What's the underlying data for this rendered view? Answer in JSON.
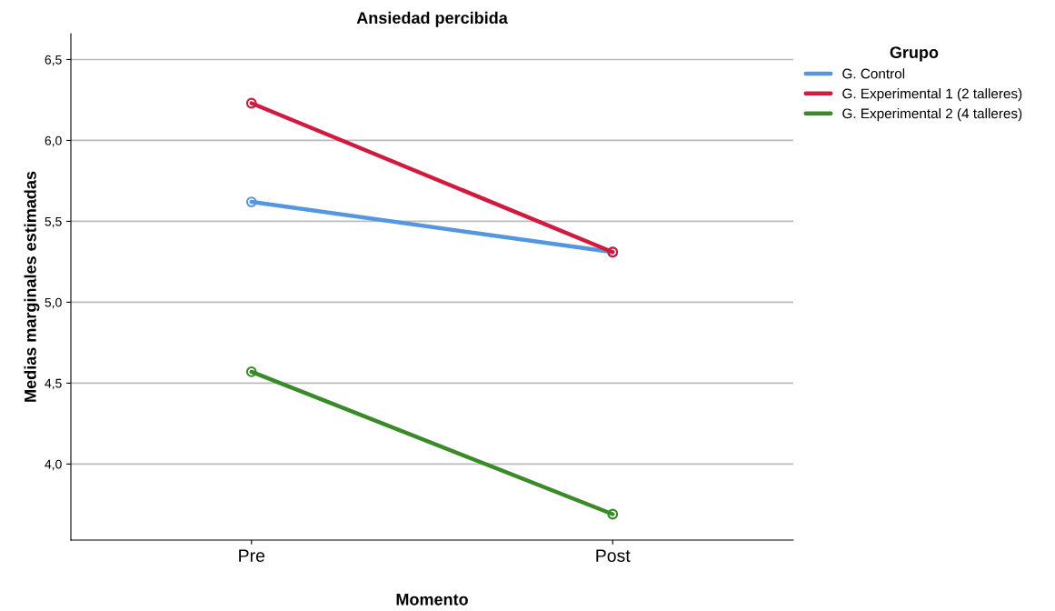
{
  "chart_data": {
    "type": "line",
    "title": "Ansiedad percibida",
    "xlabel": "Momento",
    "ylabel": "Medias marginales estimadas",
    "legend_title": "Grupo",
    "categories": [
      "Pre",
      "Post"
    ],
    "series": [
      {
        "name": "G. Control",
        "color": "#5596e0",
        "values": [
          5.62,
          5.31
        ]
      },
      {
        "name": "G. Experimental 1 (2 talleres)",
        "color": "#d01a3e",
        "values": [
          6.23,
          5.31
        ]
      },
      {
        "name": "G. Experimental 2 (4 talleres)",
        "color": "#3a8a2a",
        "values": [
          4.57,
          3.69
        ]
      }
    ],
    "ylim": [
      3.53,
      6.66
    ],
    "yticks": [
      {
        "value": 4.0,
        "label": "4,0"
      },
      {
        "value": 4.5,
        "label": "4,5"
      },
      {
        "value": 5.0,
        "label": "5,0"
      },
      {
        "value": 5.5,
        "label": "5,5"
      },
      {
        "value": 6.0,
        "label": "6,0"
      },
      {
        "value": 6.5,
        "label": "6,5"
      }
    ],
    "grid": "y",
    "legend": "top right",
    "marker": "circle",
    "line_style": "solid"
  }
}
